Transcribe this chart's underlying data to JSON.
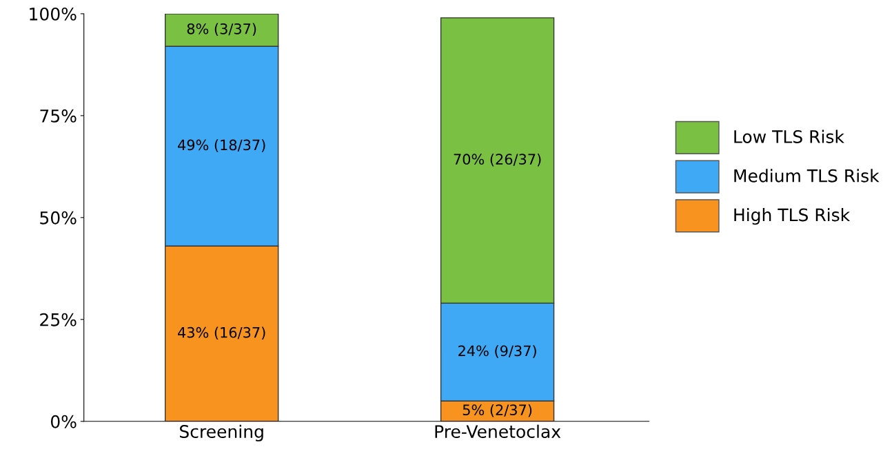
{
  "chart_data": {
    "type": "bar",
    "stacked": true,
    "categories": [
      "Screening",
      "Pre-Venetoclax"
    ],
    "series": [
      {
        "name": "High TLS Risk",
        "color": "#f7931e",
        "values": [
          43,
          5
        ],
        "value_labels": [
          "43% (16/37)",
          "5% (2/37)"
        ]
      },
      {
        "name": "Medium TLS Risk",
        "color": "#3fa9f5",
        "values": [
          49,
          24
        ],
        "value_labels": [
          "49% (18/37)",
          "24% (9/37)"
        ]
      },
      {
        "name": "Low TLS Risk",
        "color": "#7ac143",
        "values": [
          8,
          70
        ],
        "value_labels": [
          "8% (3/37)",
          "70% (26/37)"
        ]
      }
    ],
    "ylim": [
      0,
      100
    ],
    "yticks": [
      {
        "value": 0,
        "label": "0%"
      },
      {
        "value": 25,
        "label": "25%"
      },
      {
        "value": 50,
        "label": "50%"
      },
      {
        "value": 75,
        "label": "75%"
      },
      {
        "value": 100,
        "label": "100%"
      }
    ],
    "legend": "right",
    "grid": false
  }
}
